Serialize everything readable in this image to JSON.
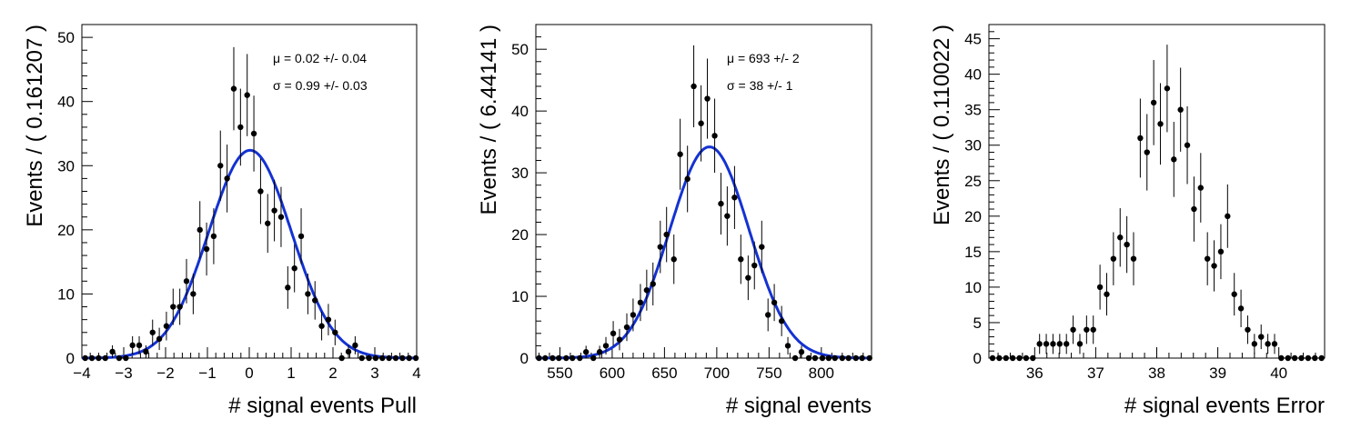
{
  "chart_data": [
    {
      "type": "scatter",
      "xlabel": "# signal events Pull",
      "ylabel": "Events / ( 0.161207 )",
      "xlim": [
        -4,
        4
      ],
      "ylim": [
        0,
        52
      ],
      "xticks": [
        -4,
        -3,
        -2,
        -1,
        0,
        1,
        2,
        3,
        4
      ],
      "yticks": [
        0,
        10,
        20,
        30,
        40,
        50
      ],
      "series": [
        {
          "x": [
            -3.92,
            -3.76,
            -3.6,
            -3.44,
            -3.27,
            -3.11,
            -2.95,
            -2.79,
            -2.63,
            -2.47,
            -2.31,
            -2.15,
            -1.98,
            -1.82,
            -1.66,
            -1.5,
            -1.34,
            -1.18,
            -1.02,
            -0.85,
            -0.69,
            -0.53,
            -0.37,
            -0.21,
            -0.05,
            0.11,
            0.27,
            0.44,
            0.6,
            0.76,
            0.92,
            1.08,
            1.24,
            1.4,
            1.57,
            1.73,
            1.89,
            2.05,
            2.21,
            2.37,
            2.53,
            2.69,
            2.86,
            3.02,
            3.18,
            3.34,
            3.5,
            3.66,
            3.82,
            3.98
          ],
          "y": [
            0,
            0,
            0,
            0,
            1,
            0,
            0,
            2,
            2,
            1,
            4,
            3,
            5,
            8,
            8,
            12,
            10,
            20,
            17,
            19,
            30,
            28,
            42,
            36,
            41,
            35,
            26,
            21,
            23,
            22,
            11,
            14,
            19,
            10,
            9,
            5,
            6,
            4,
            0,
            1,
            2,
            0,
            0,
            0,
            0,
            0,
            0,
            0,
            0,
            0
          ]
        }
      ],
      "fit": {
        "mu": 0.02,
        "sigma": 0.99,
        "amplitude": 32.4
      },
      "annotations": [
        "μ =  0.02 +/- 0.04",
        "σ =  0.99 +/- 0.03"
      ]
    },
    {
      "type": "scatter",
      "xlabel": "# signal events",
      "ylabel": "Events / ( 6.44141 )",
      "xlim": [
        527,
        848
      ],
      "ylim": [
        0,
        54
      ],
      "xticks": [
        550,
        600,
        650,
        700,
        750,
        800
      ],
      "yticks": [
        0,
        10,
        20,
        30,
        40,
        50
      ],
      "series": [
        {
          "x": [
            530,
            536,
            543,
            549,
            556,
            562,
            569,
            575,
            582,
            588,
            594,
            601,
            607,
            614,
            620,
            627,
            633,
            639,
            646,
            652,
            659,
            665,
            672,
            678,
            685,
            691,
            698,
            704,
            710,
            717,
            723,
            730,
            736,
            743,
            749,
            755,
            762,
            768,
            775,
            781,
            788,
            794,
            801,
            807,
            813,
            820,
            826,
            833,
            839,
            846
          ],
          "y": [
            0,
            0,
            0,
            0,
            0,
            0,
            0,
            1,
            0,
            1,
            2,
            4,
            3,
            5,
            7,
            9,
            11,
            12,
            18,
            20,
            16,
            33,
            29,
            44,
            38,
            42,
            36,
            25,
            23,
            26,
            16,
            13,
            15,
            18,
            7,
            9,
            6,
            2,
            0,
            1,
            0,
            0,
            0,
            0,
            0,
            0,
            0,
            0,
            0,
            0
          ]
        }
      ],
      "fit": {
        "mu": 693,
        "sigma": 38,
        "amplitude": 34.2
      },
      "annotations": [
        "μ =  693 +/- 2",
        "σ =  38 +/- 1"
      ]
    },
    {
      "type": "scatter",
      "xlabel": "# signal events Error",
      "ylabel": "Events / ( 0.110022 )",
      "xlim": [
        35.25,
        40.75
      ],
      "ylim": [
        0,
        47
      ],
      "xticks": [
        36,
        37,
        38,
        39,
        40
      ],
      "yticks": [
        0,
        5,
        10,
        15,
        20,
        25,
        30,
        35,
        40,
        45
      ],
      "series": [
        {
          "x": [
            35.31,
            35.42,
            35.53,
            35.64,
            35.75,
            35.86,
            35.97,
            36.08,
            36.19,
            36.3,
            36.41,
            36.52,
            36.63,
            36.74,
            36.85,
            36.96,
            37.07,
            37.18,
            37.29,
            37.4,
            37.51,
            37.62,
            37.73,
            37.84,
            37.95,
            38.06,
            38.17,
            38.28,
            38.39,
            38.5,
            38.61,
            38.72,
            38.83,
            38.94,
            39.05,
            39.16,
            39.27,
            39.38,
            39.49,
            39.6,
            39.71,
            39.82,
            39.93,
            40.04,
            40.15,
            40.26,
            40.37,
            40.48,
            40.59,
            40.7
          ],
          "y": [
            0,
            0,
            0,
            0,
            0,
            0,
            0,
            2,
            2,
            2,
            2,
            2,
            4,
            2,
            4,
            4,
            10,
            9,
            14,
            17,
            16,
            14,
            31,
            29,
            36,
            33,
            38,
            28,
            35,
            30,
            21,
            24,
            14,
            13,
            15,
            20,
            9,
            7,
            4,
            2,
            3,
            2,
            2,
            0,
            0,
            0,
            0,
            0,
            0,
            0
          ]
        }
      ],
      "annotations": []
    }
  ]
}
